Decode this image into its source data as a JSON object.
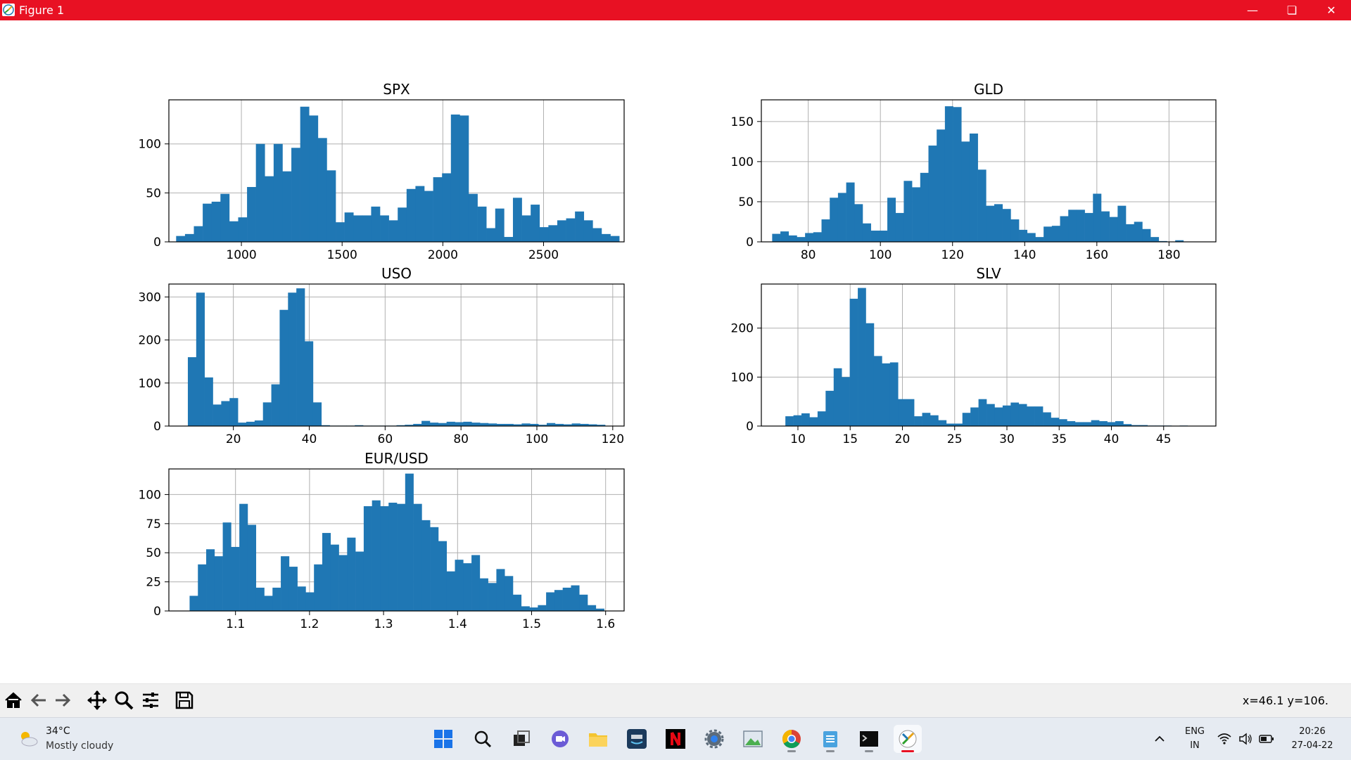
{
  "window": {
    "title": "Figure 1"
  },
  "status": {
    "coords": "x=46.1 y=106."
  },
  "toolbar": {
    "buttons": [
      "home-icon",
      "back-arrow-icon",
      "forward-arrow-icon",
      "pan-icon",
      "zoom-icon",
      "configure-subplots-icon",
      "save-icon"
    ]
  },
  "taskbar": {
    "weather_temp": "34°C",
    "weather_desc": "Mostly cloudy",
    "lang": "ENG",
    "region": "IN",
    "time": "20:26",
    "date": "27-04-22"
  },
  "colors": {
    "bar": "#1f77b4",
    "titlebar": "#e81123",
    "grid": "#b0b0b0"
  },
  "chart_data": [
    {
      "type": "bar",
      "title": "SPX",
      "xlim": [
        640,
        2900
      ],
      "ylim": [
        0,
        145
      ],
      "xticks": [
        1000,
        1500,
        2000,
        2500
      ],
      "yticks": [
        0,
        50,
        100
      ],
      "bin_start": 676,
      "bin_width": 44,
      "values": [
        6,
        8,
        16,
        39,
        41,
        49,
        21,
        25,
        56,
        100,
        67,
        100,
        72,
        96,
        138,
        129,
        106,
        73,
        20,
        30,
        27,
        27,
        36,
        27,
        22,
        35,
        54,
        57,
        52,
        66,
        70,
        130,
        129,
        49,
        36,
        14,
        34,
        5,
        45,
        27,
        38,
        15,
        17,
        22,
        24,
        31,
        22,
        14,
        8,
        6
      ]
    },
    {
      "type": "bar",
      "title": "GLD",
      "xlim": [
        67,
        193
      ],
      "ylim": [
        0,
        177
      ],
      "xticks": [
        80,
        100,
        120,
        140,
        160,
        180
      ],
      "yticks": [
        0,
        50,
        100,
        150
      ],
      "bin_start": 70,
      "bin_width": 2.28,
      "values": [
        10,
        13,
        8,
        6,
        11,
        12,
        28,
        55,
        61,
        74,
        47,
        23,
        14,
        14,
        55,
        36,
        76,
        68,
        86,
        120,
        140,
        169,
        168,
        125,
        135,
        90,
        45,
        47,
        41,
        28,
        15,
        11,
        6,
        19,
        20,
        32,
        40,
        40,
        36,
        60,
        38,
        31,
        45,
        22,
        25,
        16,
        6,
        1,
        0,
        2
      ]
    },
    {
      "type": "bar",
      "title": "USO",
      "xlim": [
        3,
        123
      ],
      "ylim": [
        0,
        330
      ],
      "xticks": [
        20,
        40,
        60,
        80,
        100,
        120
      ],
      "yticks": [
        0,
        100,
        200,
        300
      ],
      "bin_start": 8,
      "bin_width": 2.2,
      "values": [
        160,
        310,
        113,
        50,
        58,
        65,
        8,
        10,
        13,
        55,
        97,
        270,
        310,
        320,
        197,
        55,
        2,
        1,
        1,
        1,
        2,
        1,
        1,
        1,
        1,
        2,
        3,
        5,
        12,
        8,
        7,
        10,
        9,
        10,
        8,
        7,
        6,
        5,
        5,
        4,
        6,
        5,
        3,
        7,
        5,
        4,
        6,
        5,
        4,
        3
      ]
    },
    {
      "type": "bar",
      "title": "SLV",
      "xlim": [
        6.5,
        50
      ],
      "ylim": [
        0,
        290
      ],
      "xticks": [
        10,
        15,
        20,
        25,
        30,
        35,
        40,
        45
      ],
      "yticks": [
        0,
        100,
        200
      ],
      "bin_start": 8.8,
      "bin_width": 0.77,
      "values": [
        20,
        22,
        26,
        18,
        30,
        72,
        118,
        100,
        260,
        282,
        210,
        143,
        128,
        130,
        55,
        55,
        20,
        27,
        22,
        12,
        5,
        5,
        27,
        38,
        55,
        45,
        38,
        42,
        48,
        45,
        40,
        40,
        28,
        17,
        14,
        10,
        8,
        8,
        12,
        10,
        8,
        10,
        4,
        2,
        2,
        1,
        1,
        1,
        0,
        1
      ]
    },
    {
      "type": "bar",
      "title": "EUR/USD",
      "xlim": [
        1.01,
        1.625
      ],
      "ylim": [
        0,
        122
      ],
      "xticks": [
        1.1,
        1.2,
        1.3,
        1.4,
        1.5,
        1.6
      ],
      "yticks": [
        0,
        25,
        50,
        75,
        100
      ],
      "bin_start": 1.038,
      "bin_width": 0.0112,
      "values": [
        13,
        40,
        53,
        47,
        76,
        55,
        92,
        74,
        20,
        13,
        20,
        47,
        38,
        21,
        16,
        40,
        67,
        57,
        48,
        63,
        51,
        90,
        95,
        90,
        93,
        92,
        118,
        92,
        78,
        72,
        60,
        34,
        44,
        41,
        48,
        28,
        24,
        36,
        30,
        14,
        4,
        3,
        5,
        16,
        18,
        20,
        22,
        14,
        5,
        2
      ]
    }
  ]
}
